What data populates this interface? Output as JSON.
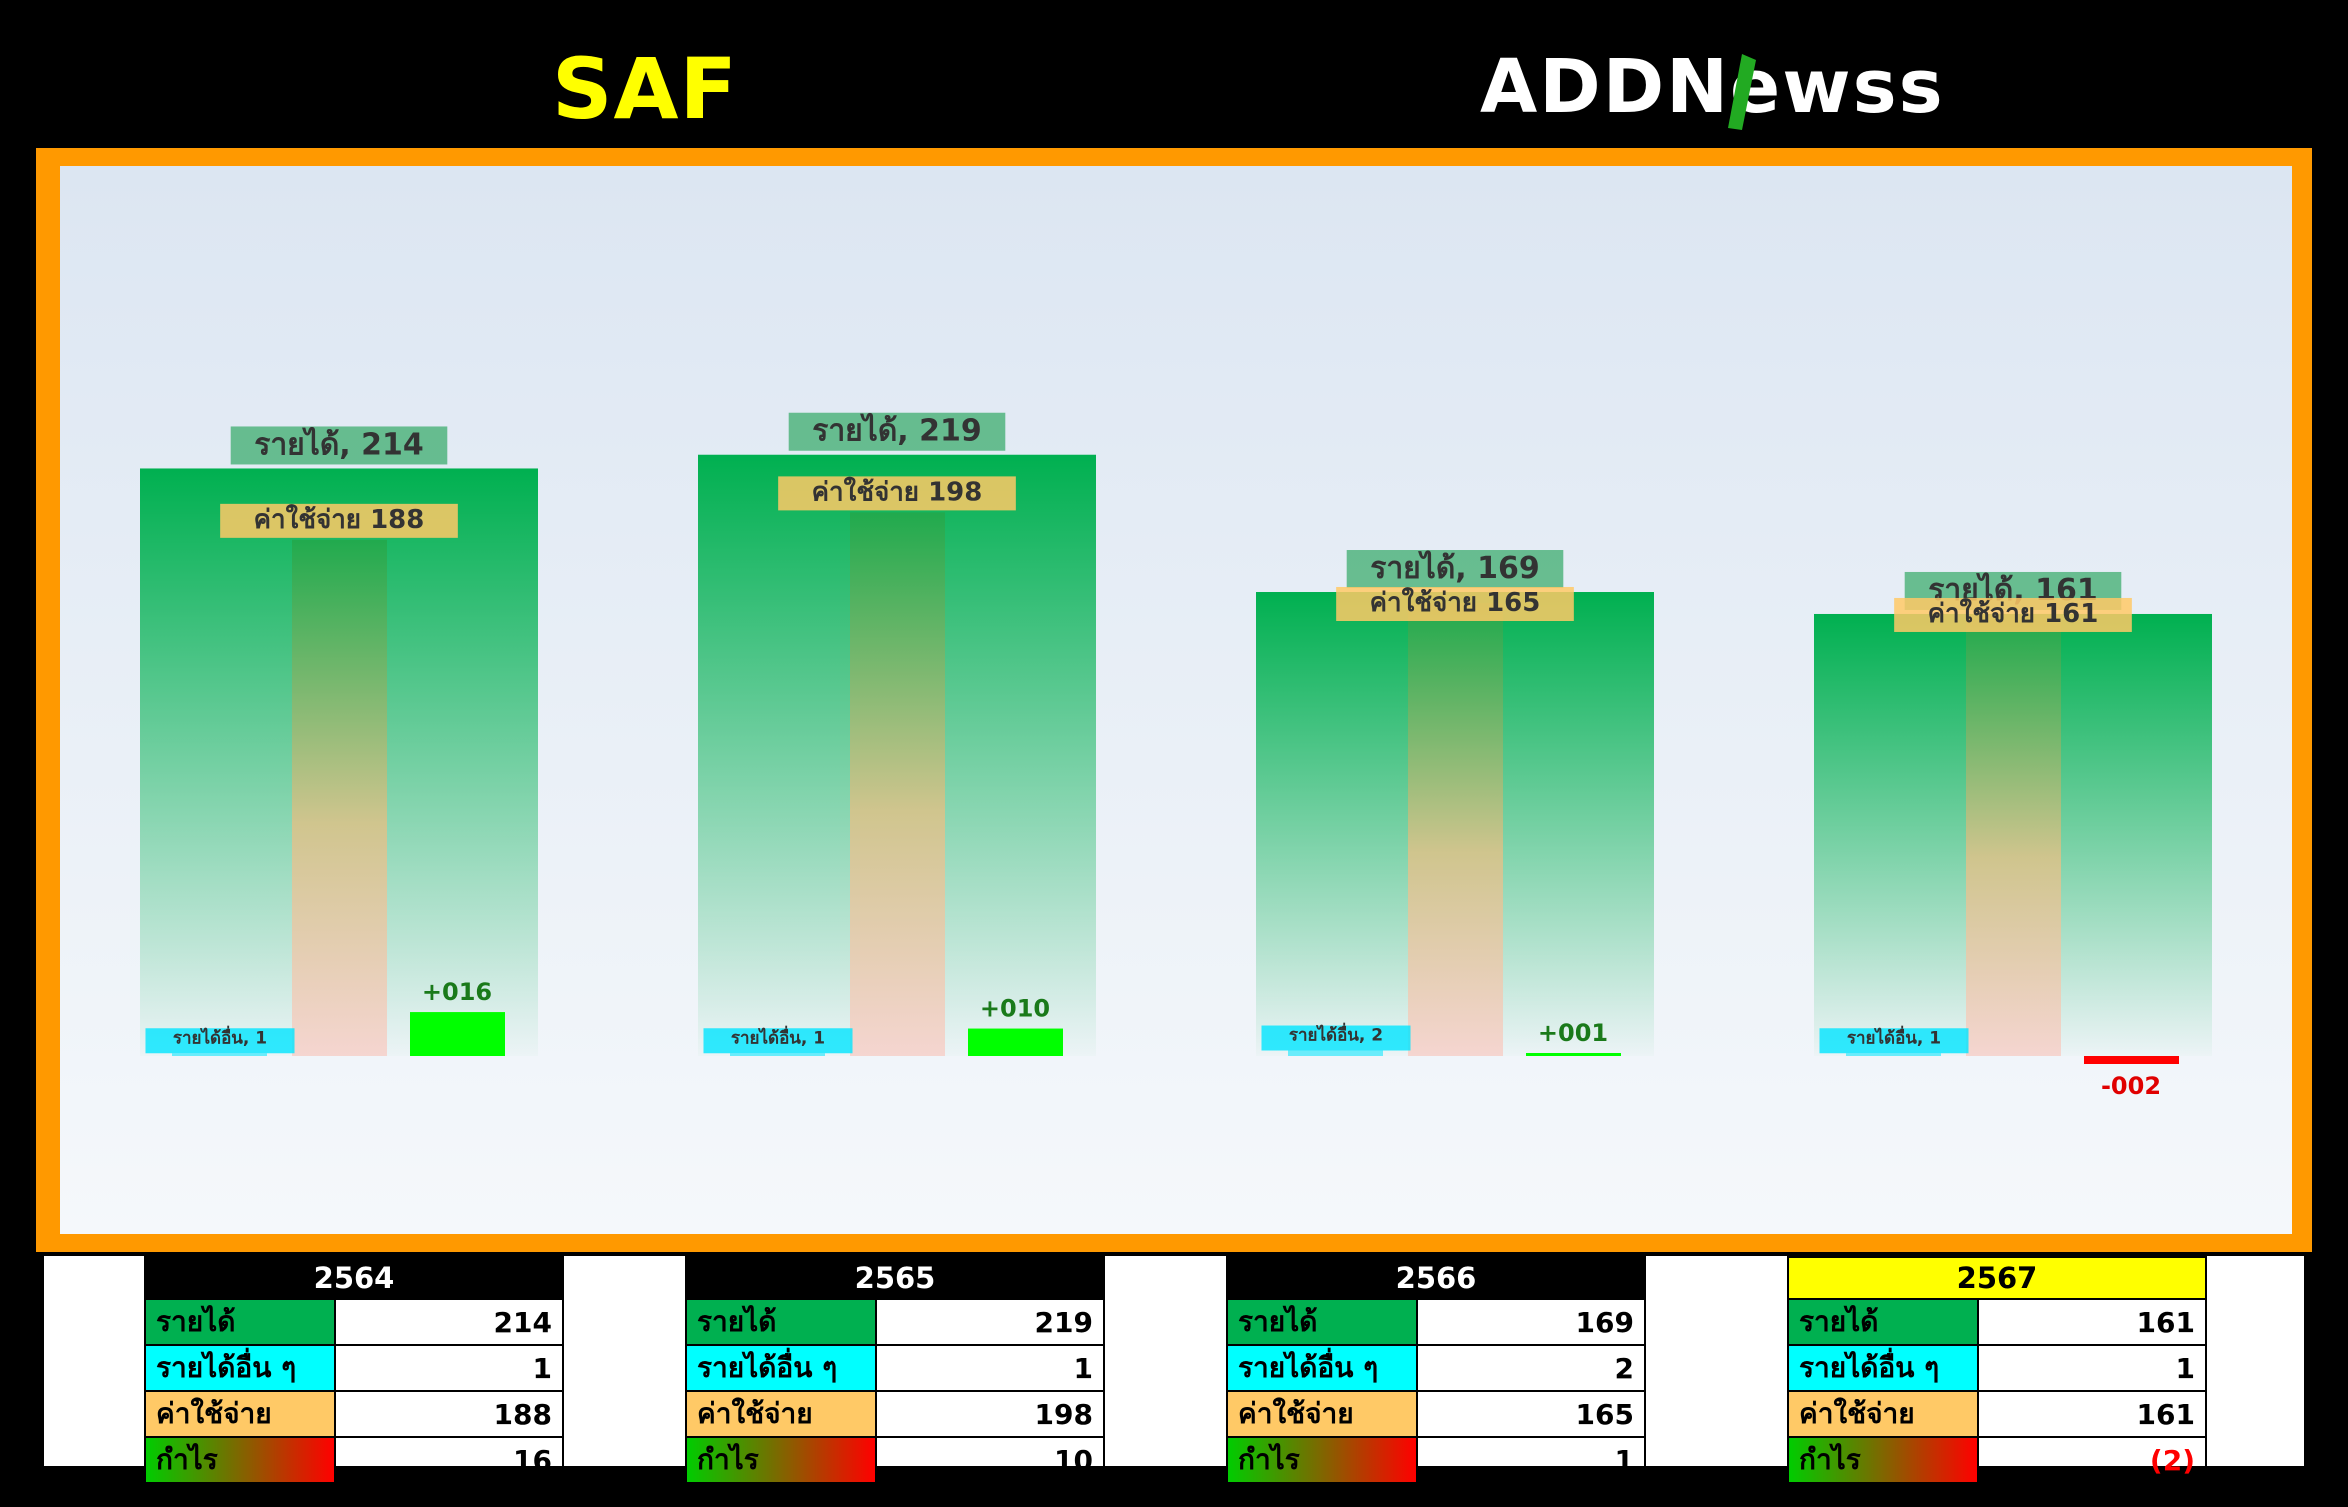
{
  "header": {
    "ticker": "SAF",
    "logo_text": "ADDNewss"
  },
  "colors": {
    "revenue": "#00b050",
    "other_income": "#00ffff",
    "expense": "#ffc966",
    "profit_pos": "#00ff00",
    "profit_neg": "#ff0000",
    "frame": "#ff9900"
  },
  "chart_data": {
    "type": "bar",
    "categories": [
      "2564",
      "2565",
      "2566",
      "2567"
    ],
    "series": [
      {
        "name": "รายได้",
        "values": [
          214,
          219,
          169,
          161
        ]
      },
      {
        "name": "รายได้อื่น",
        "values": [
          1,
          1,
          2,
          1
        ]
      },
      {
        "name": "ค่าใช้จ่าย",
        "values": [
          188,
          198,
          165,
          161
        ]
      },
      {
        "name": "กำไร",
        "values": [
          16,
          10,
          1,
          -2
        ]
      }
    ],
    "data_labels": {
      "revenue": [
        "รายได้, 214",
        "รายได้, 219",
        "รายได้, 169",
        "รายได้, 161"
      ],
      "other_income": [
        "รายได้อื่น, 1",
        "รายได้อื่น, 1",
        "รายได้อื่น, 2",
        "รายได้อื่น, 1"
      ],
      "expense": [
        "ค่าใช้จ่าย 188",
        "ค่าใช้จ่าย 198",
        "ค่าใช้จ่าย 165",
        "ค่าใช้จ่าย 161"
      ],
      "profit": [
        "+016",
        "+010",
        "+001",
        "-002"
      ]
    },
    "ylim": [
      -40,
      240
    ],
    "title": "",
    "xlabel": "",
    "ylabel": "",
    "grid": false,
    "legend": false
  },
  "tables": [
    {
      "year": "2564",
      "current": false,
      "rows": [
        {
          "label": "รายได้",
          "value": "214"
        },
        {
          "label": "รายได้อื่น ๆ",
          "value": "1"
        },
        {
          "label": "ค่าใช้จ่าย",
          "value": "188"
        },
        {
          "label": "กำไร",
          "value": "16"
        }
      ]
    },
    {
      "year": "2565",
      "current": false,
      "rows": [
        {
          "label": "รายได้",
          "value": "219"
        },
        {
          "label": "รายได้อื่น ๆ",
          "value": "1"
        },
        {
          "label": "ค่าใช้จ่าย",
          "value": "198"
        },
        {
          "label": "กำไร",
          "value": "10"
        }
      ]
    },
    {
      "year": "2566",
      "current": false,
      "rows": [
        {
          "label": "รายได้",
          "value": "169"
        },
        {
          "label": "รายได้อื่น ๆ",
          "value": "2"
        },
        {
          "label": "ค่าใช้จ่าย",
          "value": "165"
        },
        {
          "label": "กำไร",
          "value": "1"
        }
      ]
    },
    {
      "year": "2567",
      "current": true,
      "rows": [
        {
          "label": "รายได้",
          "value": "161"
        },
        {
          "label": "รายได้อื่น ๆ",
          "value": "1"
        },
        {
          "label": "ค่าใช้จ่าย",
          "value": "161"
        },
        {
          "label": "กำไร",
          "value": "(2)"
        }
      ]
    }
  ]
}
